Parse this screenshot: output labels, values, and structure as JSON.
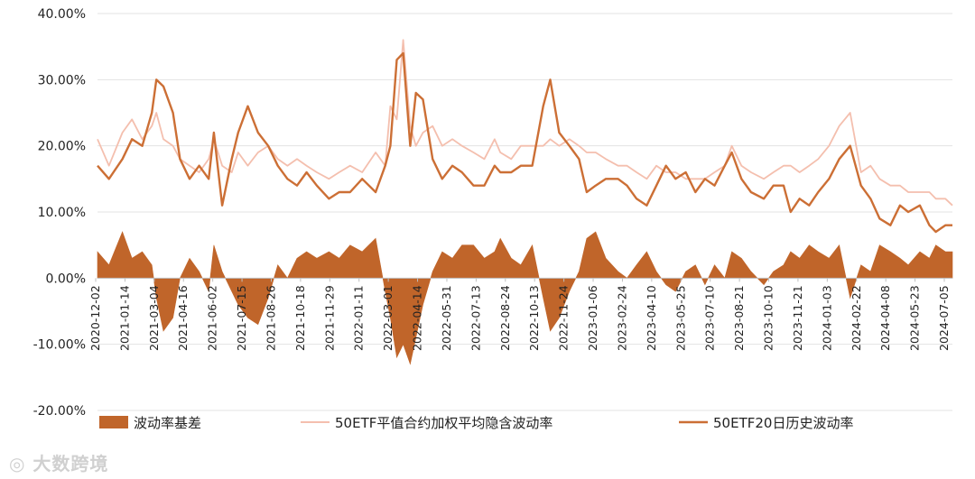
{
  "chart_data": {
    "type": "line",
    "y_axis": {
      "min": -0.2,
      "max": 0.4,
      "step": 0.1,
      "format": "percent",
      "tick_labels": [
        "-20.00%",
        "-10.00%",
        "0.00%",
        "10.00%",
        "20.00%",
        "30.00%",
        "40.00%"
      ]
    },
    "x_tick_labels": [
      "2020-12-02",
      "2021-01-14",
      "2021-03-04",
      "2021-04-16",
      "2021-06-02",
      "2021-07-15",
      "2021-08-26",
      "2021-10-18",
      "2021-11-29",
      "2022-01-11",
      "2022-03-01",
      "2022-04-14",
      "2022-05-31",
      "2022-07-13",
      "2022-08-24",
      "2022-10-13",
      "2022-11-24",
      "2023-01-06",
      "2023-02-24",
      "2023-04-10",
      "2023-05-25",
      "2023-07-10",
      "2023-08-21",
      "2023-10-10",
      "2023-11-21",
      "2024-01-03",
      "2024-02-22",
      "2024-04-08",
      "2024-05-23",
      "2024-07-05"
    ],
    "x_range": [
      "2020-12-02",
      "2024-07-31"
    ],
    "grid": "horizontal",
    "legend_position": "bottom",
    "series": [
      {
        "name": "波动率基差",
        "kind": "area",
        "color": "#c0652a",
        "x": [
          "2020-12-02",
          "2020-12-20",
          "2021-01-10",
          "2021-01-25",
          "2021-02-10",
          "2021-02-25",
          "2021-03-04",
          "2021-03-15",
          "2021-03-30",
          "2021-04-10",
          "2021-04-25",
          "2021-05-10",
          "2021-05-25",
          "2021-06-02",
          "2021-06-15",
          "2021-06-30",
          "2021-07-10",
          "2021-07-25",
          "2021-08-10",
          "2021-08-26",
          "2021-09-10",
          "2021-09-25",
          "2021-10-10",
          "2021-10-25",
          "2021-11-10",
          "2021-11-29",
          "2021-12-15",
          "2022-01-01",
          "2022-01-20",
          "2022-02-10",
          "2022-02-25",
          "2022-03-05",
          "2022-03-15",
          "2022-03-25",
          "2022-04-05",
          "2022-04-14",
          "2022-04-25",
          "2022-05-10",
          "2022-05-25",
          "2022-06-10",
          "2022-06-25",
          "2022-07-13",
          "2022-07-30",
          "2022-08-15",
          "2022-08-24",
          "2022-09-10",
          "2022-09-25",
          "2022-10-13",
          "2022-10-30",
          "2022-11-10",
          "2022-11-24",
          "2022-12-10",
          "2022-12-25",
          "2023-01-06",
          "2023-01-20",
          "2023-02-05",
          "2023-02-24",
          "2023-03-10",
          "2023-03-25",
          "2023-04-10",
          "2023-04-25",
          "2023-05-10",
          "2023-05-25",
          "2023-06-10",
          "2023-06-25",
          "2023-07-10",
          "2023-07-25",
          "2023-08-10",
          "2023-08-21",
          "2023-09-05",
          "2023-09-20",
          "2023-10-10",
          "2023-10-25",
          "2023-11-10",
          "2023-11-21",
          "2023-12-05",
          "2023-12-20",
          "2024-01-03",
          "2024-01-20",
          "2024-02-05",
          "2024-02-22",
          "2024-03-10",
          "2024-03-25",
          "2024-04-08",
          "2024-04-25",
          "2024-05-10",
          "2024-05-23",
          "2024-06-10",
          "2024-06-25",
          "2024-07-05",
          "2024-07-20",
          "2024-07-31"
        ],
        "values": [
          0.04,
          0.02,
          0.07,
          0.03,
          0.04,
          0.02,
          -0.03,
          -0.08,
          -0.06,
          0.0,
          0.03,
          0.01,
          -0.02,
          0.05,
          0.01,
          -0.02,
          -0.04,
          -0.06,
          -0.07,
          -0.03,
          0.02,
          0.0,
          0.03,
          0.04,
          0.03,
          0.04,
          0.03,
          0.05,
          0.04,
          0.06,
          -0.02,
          -0.06,
          -0.12,
          -0.1,
          -0.13,
          -0.09,
          -0.04,
          0.01,
          0.04,
          0.03,
          0.05,
          0.05,
          0.03,
          0.04,
          0.06,
          0.03,
          0.02,
          0.05,
          -0.03,
          -0.08,
          -0.06,
          -0.02,
          0.01,
          0.06,
          0.07,
          0.03,
          0.01,
          0.0,
          0.02,
          0.04,
          0.01,
          -0.01,
          -0.02,
          0.01,
          0.02,
          -0.01,
          0.02,
          0.0,
          0.04,
          0.03,
          0.01,
          -0.01,
          0.01,
          0.02,
          0.04,
          0.03,
          0.05,
          0.04,
          0.03,
          0.05,
          -0.03,
          0.02,
          0.01,
          0.05,
          0.04,
          0.03,
          0.02,
          0.04,
          0.03,
          0.05,
          0.04,
          0.04
        ]
      },
      {
        "name": "50ETF平值合约加权平均隐含波动率",
        "kind": "line",
        "color": "#f4bfae",
        "x": [
          "2020-12-02",
          "2020-12-20",
          "2021-01-10",
          "2021-01-25",
          "2021-02-10",
          "2021-02-25",
          "2021-03-04",
          "2021-03-15",
          "2021-03-30",
          "2021-04-10",
          "2021-04-25",
          "2021-05-10",
          "2021-05-25",
          "2021-06-02",
          "2021-06-15",
          "2021-06-30",
          "2021-07-10",
          "2021-07-25",
          "2021-08-10",
          "2021-08-26",
          "2021-09-10",
          "2021-09-25",
          "2021-10-10",
          "2021-10-25",
          "2021-11-10",
          "2021-11-29",
          "2021-12-15",
          "2022-01-01",
          "2022-01-20",
          "2022-02-10",
          "2022-02-25",
          "2022-03-05",
          "2022-03-15",
          "2022-03-25",
          "2022-04-05",
          "2022-04-14",
          "2022-04-25",
          "2022-05-10",
          "2022-05-25",
          "2022-06-10",
          "2022-06-25",
          "2022-07-13",
          "2022-07-30",
          "2022-08-15",
          "2022-08-24",
          "2022-09-10",
          "2022-09-25",
          "2022-10-13",
          "2022-10-30",
          "2022-11-10",
          "2022-11-24",
          "2022-12-10",
          "2022-12-25",
          "2023-01-06",
          "2023-01-20",
          "2023-02-05",
          "2023-02-24",
          "2023-03-10",
          "2023-03-25",
          "2023-04-10",
          "2023-04-25",
          "2023-05-10",
          "2023-05-25",
          "2023-06-10",
          "2023-06-25",
          "2023-07-10",
          "2023-07-25",
          "2023-08-10",
          "2023-08-21",
          "2023-09-05",
          "2023-09-20",
          "2023-10-10",
          "2023-10-25",
          "2023-11-10",
          "2023-11-21",
          "2023-12-05",
          "2023-12-20",
          "2024-01-03",
          "2024-01-20",
          "2024-02-05",
          "2024-02-22",
          "2024-03-10",
          "2024-03-25",
          "2024-04-08",
          "2024-04-25",
          "2024-05-10",
          "2024-05-23",
          "2024-06-10",
          "2024-06-25",
          "2024-07-05",
          "2024-07-20",
          "2024-07-31"
        ],
        "values": [
          0.21,
          0.17,
          0.22,
          0.24,
          0.21,
          0.23,
          0.25,
          0.21,
          0.2,
          0.18,
          0.17,
          0.16,
          0.18,
          0.21,
          0.17,
          0.16,
          0.19,
          0.17,
          0.19,
          0.2,
          0.18,
          0.17,
          0.18,
          0.17,
          0.16,
          0.15,
          0.16,
          0.17,
          0.16,
          0.19,
          0.17,
          0.26,
          0.24,
          0.36,
          0.23,
          0.2,
          0.22,
          0.23,
          0.2,
          0.21,
          0.2,
          0.19,
          0.18,
          0.21,
          0.19,
          0.18,
          0.2,
          0.2,
          0.2,
          0.21,
          0.2,
          0.21,
          0.2,
          0.19,
          0.19,
          0.18,
          0.17,
          0.17,
          0.16,
          0.15,
          0.17,
          0.16,
          0.16,
          0.15,
          0.15,
          0.15,
          0.16,
          0.17,
          0.2,
          0.17,
          0.16,
          0.15,
          0.16,
          0.17,
          0.17,
          0.16,
          0.17,
          0.18,
          0.2,
          0.23,
          0.25,
          0.16,
          0.17,
          0.15,
          0.14,
          0.14,
          0.13,
          0.13,
          0.13,
          0.12,
          0.12,
          0.11
        ]
      },
      {
        "name": "50ETF20日历史波动率",
        "kind": "line",
        "color": "#cc6f35",
        "x": [
          "2020-12-02",
          "2020-12-20",
          "2021-01-10",
          "2021-01-25",
          "2021-02-10",
          "2021-02-25",
          "2021-03-04",
          "2021-03-15",
          "2021-03-30",
          "2021-04-10",
          "2021-04-25",
          "2021-05-10",
          "2021-05-25",
          "2021-06-02",
          "2021-06-15",
          "2021-06-30",
          "2021-07-10",
          "2021-07-25",
          "2021-08-10",
          "2021-08-26",
          "2021-09-10",
          "2021-09-25",
          "2021-10-10",
          "2021-10-25",
          "2021-11-10",
          "2021-11-29",
          "2021-12-15",
          "2022-01-01",
          "2022-01-20",
          "2022-02-10",
          "2022-02-25",
          "2022-03-05",
          "2022-03-15",
          "2022-03-25",
          "2022-04-05",
          "2022-04-14",
          "2022-04-25",
          "2022-05-10",
          "2022-05-25",
          "2022-06-10",
          "2022-06-25",
          "2022-07-13",
          "2022-07-30",
          "2022-08-15",
          "2022-08-24",
          "2022-09-10",
          "2022-09-25",
          "2022-10-13",
          "2022-10-30",
          "2022-11-10",
          "2022-11-24",
          "2022-12-10",
          "2022-12-25",
          "2023-01-06",
          "2023-01-20",
          "2023-02-05",
          "2023-02-24",
          "2023-03-10",
          "2023-03-25",
          "2023-04-10",
          "2023-04-25",
          "2023-05-10",
          "2023-05-25",
          "2023-06-10",
          "2023-06-25",
          "2023-07-10",
          "2023-07-25",
          "2023-08-10",
          "2023-08-21",
          "2023-09-05",
          "2023-09-20",
          "2023-10-10",
          "2023-10-25",
          "2023-11-10",
          "2023-11-21",
          "2023-12-05",
          "2023-12-20",
          "2024-01-03",
          "2024-01-20",
          "2024-02-05",
          "2024-02-22",
          "2024-03-10",
          "2024-03-25",
          "2024-04-08",
          "2024-04-25",
          "2024-05-10",
          "2024-05-23",
          "2024-06-10",
          "2024-06-25",
          "2024-07-05",
          "2024-07-20",
          "2024-07-31"
        ],
        "values": [
          0.17,
          0.15,
          0.18,
          0.21,
          0.2,
          0.25,
          0.3,
          0.29,
          0.25,
          0.18,
          0.15,
          0.17,
          0.15,
          0.22,
          0.11,
          0.18,
          0.22,
          0.26,
          0.22,
          0.2,
          0.17,
          0.15,
          0.14,
          0.16,
          0.14,
          0.12,
          0.13,
          0.13,
          0.15,
          0.13,
          0.17,
          0.2,
          0.33,
          0.34,
          0.2,
          0.28,
          0.27,
          0.18,
          0.15,
          0.17,
          0.16,
          0.14,
          0.14,
          0.17,
          0.16,
          0.16,
          0.17,
          0.17,
          0.26,
          0.3,
          0.22,
          0.2,
          0.18,
          0.13,
          0.14,
          0.15,
          0.15,
          0.14,
          0.12,
          0.11,
          0.14,
          0.17,
          0.15,
          0.16,
          0.13,
          0.15,
          0.14,
          0.17,
          0.19,
          0.15,
          0.13,
          0.12,
          0.14,
          0.14,
          0.1,
          0.12,
          0.11,
          0.13,
          0.15,
          0.18,
          0.2,
          0.14,
          0.12,
          0.09,
          0.08,
          0.11,
          0.1,
          0.11,
          0.08,
          0.07,
          0.08,
          0.08
        ]
      }
    ],
    "watermark": "大数跨境"
  }
}
